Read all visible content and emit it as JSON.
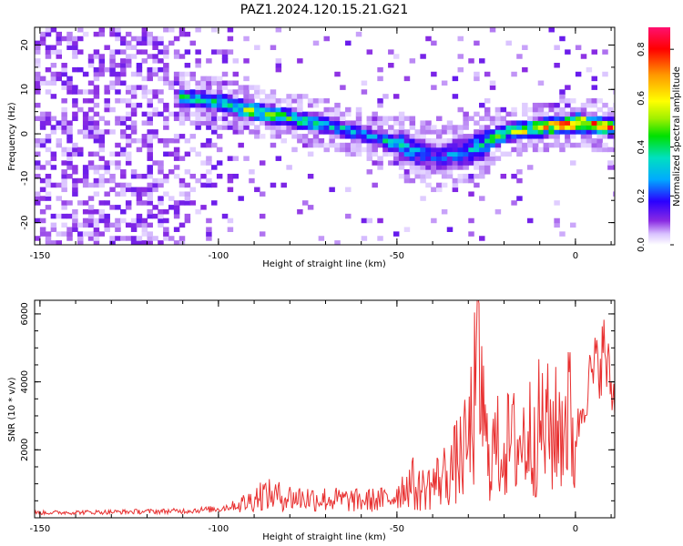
{
  "title": "PAZ1.2024.120.15.21.G21",
  "chart_data": [
    {
      "type": "heatmap",
      "xlabel": "Height of straight line (km)",
      "ylabel": "Frequency (Hz)",
      "xlim": [
        -151.5,
        11
      ],
      "ylim": [
        -25,
        24
      ],
      "xticks": [
        "-150",
        "-100",
        "-50",
        "0"
      ],
      "yticks": [
        "20",
        "10",
        "0",
        "-10",
        "-20"
      ],
      "colorbar": {
        "label": "Normalized spectral amplitude",
        "range": [
          0,
          0.89
        ],
        "ticks": [
          "0.0",
          "0.2",
          "0.4",
          "0.6",
          "0.8"
        ],
        "colormap": "rainbow"
      },
      "ridge": {
        "x": [
          -112,
          -100,
          -90,
          -80,
          -70,
          -60,
          -50,
          -40,
          -30,
          -20,
          -10,
          0,
          11
        ],
        "y": [
          8,
          6.5,
          4.5,
          3,
          1.5,
          -0.5,
          -3,
          -6,
          -4,
          0,
          1,
          2,
          1
        ],
        "peak_amplitude": [
          0.45,
          0.4,
          0.55,
          0.45,
          0.4,
          0.3,
          0.35,
          0.2,
          0.3,
          0.55,
          0.7,
          0.85,
          0.7
        ]
      }
    },
    {
      "type": "line",
      "xlabel": "Height of straight line (km)",
      "ylabel": "SNR (10 * v/v)",
      "xlim": [
        -151.5,
        11
      ],
      "ylim": [
        0,
        6400
      ],
      "xticks": [
        "-150",
        "-100",
        "-50",
        "0"
      ],
      "yticks": [
        "2000",
        "4000",
        "6000"
      ],
      "color": "#e83030",
      "series": [
        {
          "x": [
            -150,
            -130,
            -110,
            -100,
            -92,
            -88,
            -80,
            -70,
            -60,
            -52,
            -48,
            -40,
            -35,
            -30,
            -27,
            -25,
            -20,
            -15,
            -10,
            -5,
            -2,
            0,
            3,
            8,
            11
          ],
          "y": [
            150,
            170,
            200,
            260,
            450,
            700,
            600,
            550,
            500,
            550,
            900,
            1400,
            2000,
            3000,
            6300,
            2800,
            3000,
            3200,
            3800,
            3600,
            4600,
            2500,
            4100,
            5300,
            3600
          ]
        }
      ]
    }
  ]
}
